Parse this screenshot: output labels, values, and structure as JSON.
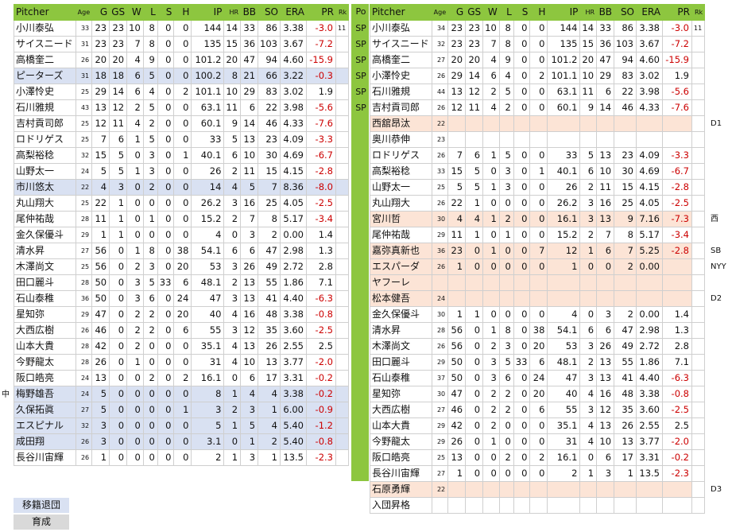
{
  "headers": [
    "Pitcher",
    "Age",
    "G",
    "GS",
    "W",
    "L",
    "S",
    "H",
    "IP",
    "HR",
    "BB",
    "SO",
    "ERA",
    "PR",
    "Rk"
  ],
  "pos_header": "Po",
  "left_rows": [
    {
      "c": [
        "小川泰弘",
        "33",
        "23",
        "23",
        "10",
        "8",
        "0",
        "0",
        "144",
        "14",
        "33",
        "86",
        "3.38",
        "-3.0",
        "11"
      ],
      "hl": ""
    },
    {
      "c": [
        "サイスニード",
        "31",
        "23",
        "23",
        "7",
        "8",
        "0",
        "0",
        "135",
        "15",
        "36",
        "103",
        "3.67",
        "-7.2",
        ""
      ],
      "hl": ""
    },
    {
      "c": [
        "高橋奎二",
        "26",
        "20",
        "20",
        "4",
        "9",
        "0",
        "0",
        "101.2",
        "20",
        "47",
        "94",
        "4.60",
        "-15.9",
        ""
      ],
      "hl": ""
    },
    {
      "c": [
        "ピーターズ",
        "31",
        "18",
        "18",
        "6",
        "5",
        "0",
        "0",
        "100.2",
        "8",
        "21",
        "66",
        "3.22",
        "-0.3",
        ""
      ],
      "hl": "blue"
    },
    {
      "c": [
        "小澤怜史",
        "25",
        "29",
        "14",
        "6",
        "4",
        "0",
        "2",
        "101.1",
        "10",
        "29",
        "83",
        "3.02",
        "1.9",
        ""
      ],
      "hl": ""
    },
    {
      "c": [
        "石川雅規",
        "43",
        "13",
        "12",
        "2",
        "5",
        "0",
        "0",
        "63.1",
        "11",
        "6",
        "22",
        "3.98",
        "-5.6",
        ""
      ],
      "hl": ""
    },
    {
      "c": [
        "吉村貢司郎",
        "25",
        "12",
        "11",
        "4",
        "2",
        "0",
        "0",
        "60.1",
        "9",
        "14",
        "46",
        "4.33",
        "-7.6",
        ""
      ],
      "hl": ""
    },
    {
      "c": [
        "ロドリゲス",
        "25",
        "7",
        "6",
        "1",
        "5",
        "0",
        "0",
        "33",
        "5",
        "13",
        "23",
        "4.09",
        "-3.3",
        ""
      ],
      "hl": ""
    },
    {
      "c": [
        "高梨裕稔",
        "32",
        "15",
        "5",
        "0",
        "3",
        "0",
        "1",
        "40.1",
        "6",
        "10",
        "30",
        "4.69",
        "-6.7",
        ""
      ],
      "hl": ""
    },
    {
      "c": [
        "山野太一",
        "24",
        "5",
        "5",
        "1",
        "3",
        "0",
        "0",
        "26",
        "2",
        "11",
        "15",
        "4.15",
        "-2.8",
        ""
      ],
      "hl": ""
    },
    {
      "c": [
        "市川悠太",
        "22",
        "4",
        "3",
        "0",
        "2",
        "0",
        "0",
        "14",
        "4",
        "5",
        "7",
        "8.36",
        "-8.0",
        ""
      ],
      "hl": "blue"
    },
    {
      "c": [
        "丸山翔大",
        "25",
        "22",
        "1",
        "0",
        "0",
        "0",
        "0",
        "26.2",
        "3",
        "16",
        "25",
        "4.05",
        "-2.5",
        ""
      ],
      "hl": ""
    },
    {
      "c": [
        "尾仲祐哉",
        "28",
        "11",
        "1",
        "0",
        "1",
        "0",
        "0",
        "15.2",
        "2",
        "7",
        "8",
        "5.17",
        "-3.4",
        ""
      ],
      "hl": ""
    },
    {
      "c": [
        "金久保優斗",
        "29",
        "1",
        "1",
        "0",
        "0",
        "0",
        "0",
        "4",
        "0",
        "3",
        "2",
        "0.00",
        "1.4",
        ""
      ],
      "hl": ""
    },
    {
      "c": [
        "清水昇",
        "27",
        "56",
        "0",
        "1",
        "8",
        "0",
        "38",
        "54.1",
        "6",
        "6",
        "47",
        "2.98",
        "1.3",
        ""
      ],
      "hl": ""
    },
    {
      "c": [
        "木澤尚文",
        "25",
        "56",
        "0",
        "2",
        "3",
        "0",
        "20",
        "53",
        "3",
        "26",
        "49",
        "2.72",
        "2.8",
        ""
      ],
      "hl": ""
    },
    {
      "c": [
        "田口麗斗",
        "28",
        "50",
        "0",
        "3",
        "5",
        "33",
        "6",
        "48.1",
        "2",
        "13",
        "55",
        "1.86",
        "7.1",
        ""
      ],
      "hl": ""
    },
    {
      "c": [
        "石山泰稚",
        "36",
        "50",
        "0",
        "3",
        "6",
        "0",
        "24",
        "47",
        "3",
        "13",
        "41",
        "4.40",
        "-6.3",
        ""
      ],
      "hl": ""
    },
    {
      "c": [
        "星知弥",
        "29",
        "47",
        "0",
        "2",
        "2",
        "0",
        "20",
        "40",
        "4",
        "16",
        "48",
        "3.38",
        "-0.8",
        ""
      ],
      "hl": ""
    },
    {
      "c": [
        "大西広樹",
        "26",
        "46",
        "0",
        "2",
        "2",
        "0",
        "6",
        "55",
        "3",
        "12",
        "35",
        "3.60",
        "-2.5",
        ""
      ],
      "hl": ""
    },
    {
      "c": [
        "山本大貴",
        "28",
        "42",
        "0",
        "2",
        "0",
        "0",
        "0",
        "35.1",
        "4",
        "13",
        "26",
        "2.55",
        "2.5",
        ""
      ],
      "hl": ""
    },
    {
      "c": [
        "今野龍太",
        "28",
        "26",
        "0",
        "1",
        "0",
        "0",
        "0",
        "31",
        "4",
        "10",
        "13",
        "3.77",
        "-2.0",
        ""
      ],
      "hl": ""
    },
    {
      "c": [
        "阪口皓亮",
        "24",
        "13",
        "0",
        "0",
        "2",
        "0",
        "2",
        "16.1",
        "0",
        "6",
        "17",
        "3.31",
        "-0.2",
        ""
      ],
      "hl": ""
    },
    {
      "c": [
        "梅野雄吾",
        "24",
        "5",
        "0",
        "0",
        "0",
        "0",
        "0",
        "8",
        "1",
        "4",
        "4",
        "3.38",
        "-0.2",
        ""
      ],
      "hl": "blue"
    },
    {
      "c": [
        "久保拓眞",
        "27",
        "5",
        "0",
        "0",
        "0",
        "0",
        "1",
        "3",
        "2",
        "3",
        "1",
        "6.00",
        "-0.9",
        ""
      ],
      "hl": "blue"
    },
    {
      "c": [
        "エスピナル",
        "32",
        "3",
        "0",
        "0",
        "0",
        "0",
        "0",
        "5",
        "1",
        "5",
        "4",
        "5.40",
        "-1.2",
        ""
      ],
      "hl": "blue"
    },
    {
      "c": [
        "成田翔",
        "26",
        "3",
        "0",
        "0",
        "0",
        "0",
        "0",
        "3.1",
        "0",
        "1",
        "2",
        "5.40",
        "-0.8",
        ""
      ],
      "hl": "blue"
    },
    {
      "c": [
        "長谷川宙輝",
        "26",
        "1",
        "0",
        "0",
        "0",
        "0",
        "0",
        "2",
        "1",
        "3",
        "1",
        "13.5",
        "-2.3",
        ""
      ],
      "hl": ""
    }
  ],
  "positions": [
    "SP",
    "SP",
    "SP",
    "SP",
    "SP",
    "SP"
  ],
  "right_rows": [
    {
      "c": [
        "小川泰弘",
        "34",
        "23",
        "23",
        "10",
        "8",
        "0",
        "0",
        "144",
        "14",
        "33",
        "86",
        "3.38",
        "-3.0",
        "11"
      ],
      "hl": ""
    },
    {
      "c": [
        "サイスニード",
        "32",
        "23",
        "23",
        "7",
        "8",
        "0",
        "0",
        "135",
        "15",
        "36",
        "103",
        "3.67",
        "-7.2",
        ""
      ],
      "hl": ""
    },
    {
      "c": [
        "高橋奎二",
        "27",
        "20",
        "20",
        "4",
        "9",
        "0",
        "0",
        "101.2",
        "20",
        "47",
        "94",
        "4.60",
        "-15.9",
        ""
      ],
      "hl": ""
    },
    {
      "c": [
        "小澤怜史",
        "26",
        "29",
        "14",
        "6",
        "4",
        "0",
        "2",
        "101.1",
        "10",
        "29",
        "83",
        "3.02",
        "1.9",
        ""
      ],
      "hl": ""
    },
    {
      "c": [
        "石川雅規",
        "44",
        "13",
        "12",
        "2",
        "5",
        "0",
        "0",
        "63.1",
        "11",
        "6",
        "22",
        "3.98",
        "-5.6",
        ""
      ],
      "hl": ""
    },
    {
      "c": [
        "吉村貢司郎",
        "26",
        "12",
        "11",
        "4",
        "2",
        "0",
        "0",
        "60.1",
        "9",
        "14",
        "46",
        "4.33",
        "-7.6",
        ""
      ],
      "hl": ""
    },
    {
      "c": [
        "西舘昂汰",
        "22",
        "",
        "",
        "",
        "",
        "",
        "",
        "",
        "",
        "",
        "",
        "",
        "",
        ""
      ],
      "hl": "peach"
    },
    {
      "c": [
        "奥川恭伸",
        "23",
        "",
        "",
        "",
        "",
        "",
        "",
        "",
        "",
        "",
        "",
        "",
        "",
        ""
      ],
      "hl": ""
    },
    {
      "c": [
        "ロドリゲス",
        "26",
        "7",
        "6",
        "1",
        "5",
        "0",
        "0",
        "33",
        "5",
        "13",
        "23",
        "4.09",
        "-3.3",
        ""
      ],
      "hl": ""
    },
    {
      "c": [
        "高梨裕稔",
        "33",
        "15",
        "5",
        "0",
        "3",
        "0",
        "1",
        "40.1",
        "6",
        "10",
        "30",
        "4.69",
        "-6.7",
        ""
      ],
      "hl": ""
    },
    {
      "c": [
        "山野太一",
        "25",
        "5",
        "5",
        "1",
        "3",
        "0",
        "0",
        "26",
        "2",
        "11",
        "15",
        "4.15",
        "-2.8",
        ""
      ],
      "hl": ""
    },
    {
      "c": [
        "丸山翔大",
        "26",
        "22",
        "1",
        "0",
        "0",
        "0",
        "0",
        "26.2",
        "3",
        "16",
        "25",
        "4.05",
        "-2.5",
        ""
      ],
      "hl": ""
    },
    {
      "c": [
        "宮川哲",
        "30",
        "4",
        "4",
        "1",
        "2",
        "0",
        "0",
        "16.1",
        "3",
        "13",
        "9",
        "7.16",
        "-7.3",
        ""
      ],
      "hl": "peach"
    },
    {
      "c": [
        "尾仲祐哉",
        "29",
        "11",
        "1",
        "0",
        "1",
        "0",
        "0",
        "15.2",
        "2",
        "7",
        "8",
        "5.17",
        "-3.4",
        ""
      ],
      "hl": ""
    },
    {
      "c": [
        "嘉弥真新也",
        "36",
        "23",
        "0",
        "1",
        "0",
        "0",
        "7",
        "12",
        "1",
        "6",
        "7",
        "5.25",
        "-2.8",
        ""
      ],
      "hl": "peach"
    },
    {
      "c": [
        "エスパーダ",
        "26",
        "1",
        "0",
        "0",
        "0",
        "0",
        "0",
        "1",
        "0",
        "0",
        "2",
        "0.00",
        "",
        ""
      ],
      "hl": "peach"
    },
    {
      "c": [
        "ヤフーレ",
        "",
        "",
        "",
        "",
        "",
        "",
        "",
        "",
        "",
        "",
        "",
        "",
        "",
        ""
      ],
      "hl": "peach"
    },
    {
      "c": [
        "松本健吾",
        "24",
        "",
        "",
        "",
        "",
        "",
        "",
        "",
        "",
        "",
        "",
        "",
        "",
        ""
      ],
      "hl": "peach"
    },
    {
      "c": [
        "金久保優斗",
        "30",
        "1",
        "1",
        "0",
        "0",
        "0",
        "0",
        "4",
        "0",
        "3",
        "2",
        "0.00",
        "1.4",
        ""
      ],
      "hl": ""
    },
    {
      "c": [
        "清水昇",
        "28",
        "56",
        "0",
        "1",
        "8",
        "0",
        "38",
        "54.1",
        "6",
        "6",
        "47",
        "2.98",
        "1.3",
        ""
      ],
      "hl": ""
    },
    {
      "c": [
        "木澤尚文",
        "26",
        "56",
        "0",
        "2",
        "3",
        "0",
        "20",
        "53",
        "3",
        "26",
        "49",
        "2.72",
        "2.8",
        ""
      ],
      "hl": ""
    },
    {
      "c": [
        "田口麗斗",
        "29",
        "50",
        "0",
        "3",
        "5",
        "33",
        "6",
        "48.1",
        "2",
        "13",
        "55",
        "1.86",
        "7.1",
        ""
      ],
      "hl": ""
    },
    {
      "c": [
        "石山泰稚",
        "37",
        "50",
        "0",
        "3",
        "6",
        "0",
        "24",
        "47",
        "3",
        "13",
        "41",
        "4.40",
        "-6.3",
        ""
      ],
      "hl": ""
    },
    {
      "c": [
        "星知弥",
        "30",
        "47",
        "0",
        "2",
        "2",
        "0",
        "20",
        "40",
        "4",
        "16",
        "48",
        "3.38",
        "-0.8",
        ""
      ],
      "hl": ""
    },
    {
      "c": [
        "大西広樹",
        "27",
        "46",
        "0",
        "2",
        "2",
        "0",
        "6",
        "55",
        "3",
        "12",
        "35",
        "3.60",
        "-2.5",
        ""
      ],
      "hl": ""
    },
    {
      "c": [
        "山本大貴",
        "29",
        "42",
        "0",
        "2",
        "0",
        "0",
        "0",
        "35.1",
        "4",
        "13",
        "26",
        "2.55",
        "2.5",
        ""
      ],
      "hl": ""
    },
    {
      "c": [
        "今野龍太",
        "29",
        "26",
        "0",
        "1",
        "0",
        "0",
        "0",
        "31",
        "4",
        "10",
        "13",
        "3.77",
        "-2.0",
        ""
      ],
      "hl": ""
    },
    {
      "c": [
        "阪口皓亮",
        "25",
        "13",
        "0",
        "0",
        "2",
        "0",
        "2",
        "16.1",
        "0",
        "6",
        "17",
        "3.31",
        "-0.2",
        ""
      ],
      "hl": ""
    },
    {
      "c": [
        "長谷川宙輝",
        "27",
        "1",
        "0",
        "0",
        "0",
        "0",
        "0",
        "2",
        "1",
        "3",
        "1",
        "13.5",
        "-2.3",
        ""
      ],
      "hl": ""
    },
    {
      "c": [
        "石原勇輝",
        "22",
        "",
        "",
        "",
        "",
        "",
        "",
        "",
        "",
        "",
        "",
        "",
        "",
        ""
      ],
      "hl": "peach"
    },
    {
      "c": [
        "入団昇格",
        "",
        "",
        "",
        "",
        "",
        "",
        "",
        "",
        "",
        "",
        "",
        "",
        "",
        ""
      ],
      "hl": "plainrow"
    }
  ],
  "side_marks": [
    {
      "text": "D1",
      "row": 6
    },
    {
      "text": "西",
      "row": 12
    },
    {
      "text": "SB",
      "row": 14
    },
    {
      "text": "NYY",
      "row": 15
    },
    {
      "text": "D2",
      "row": 17
    },
    {
      "text": "D3",
      "row": 29
    }
  ],
  "left_mark": "中",
  "legend": [
    {
      "label": "移籍退団",
      "color": "#d9e1f2"
    },
    {
      "label": "育成",
      "color": "#d9d9d9"
    }
  ]
}
